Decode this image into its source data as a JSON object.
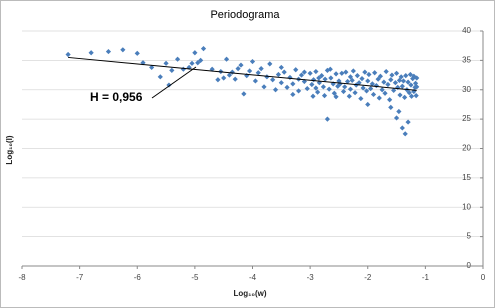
{
  "chart_data": {
    "type": "scatter",
    "title": "Periodograma",
    "x_label": "Log₁₀(w)",
    "y_label": "Log₁₀(I)",
    "annotation": "H = 0,956",
    "xlim": [
      -8,
      0
    ],
    "xticks": [
      -8,
      -7,
      -6,
      -5,
      -4,
      -3,
      -2,
      -1,
      0
    ],
    "ylim": [
      0,
      40
    ],
    "yticks": [
      0,
      5,
      10,
      15,
      20,
      25,
      30,
      35,
      40
    ],
    "grid": true,
    "series": [
      {
        "color": "#4a7ebb",
        "x": [
          -7.2,
          -6.8,
          -6.5,
          -6.25,
          -6.0,
          -5.9,
          -5.75,
          -5.6,
          -5.5,
          -5.45,
          -5.4,
          -5.3,
          -5.2,
          -5.1,
          -5.05,
          -5.0,
          -4.95,
          -4.9,
          -4.85,
          -4.7,
          -4.6,
          -4.55,
          -4.5,
          -4.45,
          -4.4,
          -4.35,
          -4.3,
          -4.25,
          -4.2,
          -4.15,
          -4.1,
          -4.05,
          -4.0,
          -3.95,
          -3.9,
          -3.85,
          -3.8,
          -3.75,
          -3.7,
          -3.65,
          -3.6,
          -3.55,
          -3.5,
          -3.45,
          -3.4,
          -3.35,
          -3.3,
          -3.25,
          -3.2,
          -3.15,
          -3.1,
          -3.05,
          -3.0,
          -2.97,
          -2.94,
          -2.9,
          -2.87,
          -2.84,
          -2.8,
          -2.77,
          -2.74,
          -2.7,
          -2.7,
          -2.67,
          -2.64,
          -2.6,
          -2.58,
          -2.55,
          -2.52,
          -2.5,
          -3.5,
          -3.3,
          -3.1,
          -2.95,
          -2.85,
          -2.75,
          -2.65,
          -2.55,
          -3.2,
          -2.9,
          -2.48,
          -2.45,
          -2.42,
          -2.4,
          -2.38,
          -2.35,
          -2.32,
          -2.3,
          -2.3,
          -2.27,
          -2.25,
          -2.22,
          -2.2,
          -2.18,
          -2.15,
          -2.12,
          -2.1,
          -2.08,
          -2.05,
          -2.02,
          -2.0,
          -2.0,
          -1.98,
          -1.95,
          -1.92,
          -1.9,
          -1.88,
          -1.85,
          -1.82,
          -1.8,
          -1.78,
          -1.75,
          -1.72,
          -1.7,
          -1.68,
          -1.65,
          -1.62,
          -1.6,
          -1.6,
          -1.58,
          -1.55,
          -1.52,
          -1.5,
          -1.5,
          -1.48,
          -1.46,
          -1.45,
          -1.44,
          -1.42,
          -1.4,
          -1.4,
          -1.38,
          -1.36,
          -1.35,
          -1.34,
          -1.32,
          -1.3,
          -1.3,
          -1.28,
          -1.26,
          -1.25,
          -1.24,
          -1.22,
          -1.2,
          -1.2,
          -1.18,
          -1.17,
          -1.16,
          -1.15,
          -1.15
        ],
        "values": [
          36.0,
          36.3,
          36.5,
          36.8,
          36.2,
          34.6,
          33.8,
          32.2,
          34.5,
          30.8,
          33.3,
          35.2,
          33.5,
          33.8,
          34.5,
          36.3,
          34.6,
          35.0,
          37.0,
          33.5,
          31.7,
          33.1,
          32.0,
          35.2,
          32.5,
          33.0,
          31.8,
          33.6,
          34.2,
          29.3,
          32.4,
          33.2,
          34.8,
          31.5,
          32.9,
          33.6,
          30.5,
          32.2,
          34.4,
          31.7,
          30.0,
          32.6,
          31.2,
          33.0,
          30.4,
          32.1,
          31.0,
          33.4,
          29.8,
          32.5,
          31.4,
          30.2,
          32.8,
          30.9,
          31.7,
          33.1,
          29.6,
          31.2,
          32.4,
          30.5,
          31.8,
          33.3,
          25.0,
          30.1,
          32.0,
          31.0,
          29.4,
          32.7,
          30.6,
          31.5,
          33.8,
          29.2,
          33.0,
          28.9,
          32.0,
          29.0,
          33.5,
          28.8,
          31.8,
          30.3,
          31.0,
          32.8,
          29.7,
          30.5,
          33.0,
          31.4,
          28.9,
          32.2,
          30.1,
          31.6,
          33.2,
          29.5,
          30.8,
          32.4,
          31.2,
          28.5,
          31.9,
          30.3,
          33.0,
          29.8,
          31.5,
          27.5,
          32.6,
          30.2,
          31.0,
          29.2,
          32.9,
          30.7,
          31.8,
          28.6,
          32.3,
          30.0,
          31.3,
          29.4,
          33.1,
          30.9,
          28.3,
          31.7,
          27.0,
          32.5,
          29.9,
          31.2,
          25.2,
          32.8,
          30.4,
          26.3,
          31.6,
          29.1,
          32.2,
          30.6,
          23.5,
          31.5,
          28.7,
          22.5,
          32.4,
          30.0,
          31.3,
          24.5,
          29.5,
          32.6,
          30.8,
          28.9,
          31.9,
          29.7,
          32.3,
          30.4,
          31.1,
          29.0,
          32.0,
          30.5
        ]
      }
    ],
    "trendline": {
      "color": "#000000",
      "x": [
        -7.2,
        -1.15
      ],
      "values": [
        35.5,
        29.9
      ]
    }
  }
}
